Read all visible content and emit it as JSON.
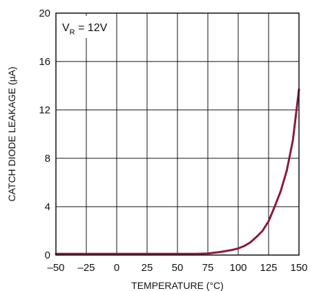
{
  "chart_data": {
    "type": "line",
    "title": "",
    "xlabel": "TEMPERATURE (°C)",
    "ylabel": "CATCH DIODE LEAKAGE (µA)",
    "xlim": [
      -50,
      150
    ],
    "ylim": [
      0,
      20
    ],
    "x_ticks": [
      -50,
      -25,
      0,
      25,
      50,
      75,
      100,
      125,
      150
    ],
    "x_tick_labels": [
      "–50",
      "–25",
      "0",
      "25",
      "50",
      "75",
      "100",
      "125",
      "150"
    ],
    "y_ticks": [
      0,
      4,
      8,
      12,
      16,
      20
    ],
    "y_tick_labels": [
      "0",
      "4",
      "8",
      "12",
      "16",
      "20"
    ],
    "grid": true,
    "annotation": {
      "main": "V",
      "sub": "R",
      "rest": " = 12V"
    },
    "line_color": "#8b1a3a",
    "series": [
      {
        "x": [
          -50,
          -25,
          0,
          25,
          50,
          65,
          75,
          85,
          95,
          100,
          105,
          110,
          115,
          120,
          125,
          130,
          135,
          140,
          145,
          150
        ],
        "y": [
          0.1,
          0.1,
          0.1,
          0.1,
          0.1,
          0.1,
          0.13,
          0.25,
          0.42,
          0.55,
          0.75,
          1.05,
          1.5,
          2.0,
          2.8,
          4.0,
          5.3,
          7.0,
          9.5,
          13.7
        ]
      }
    ]
  }
}
